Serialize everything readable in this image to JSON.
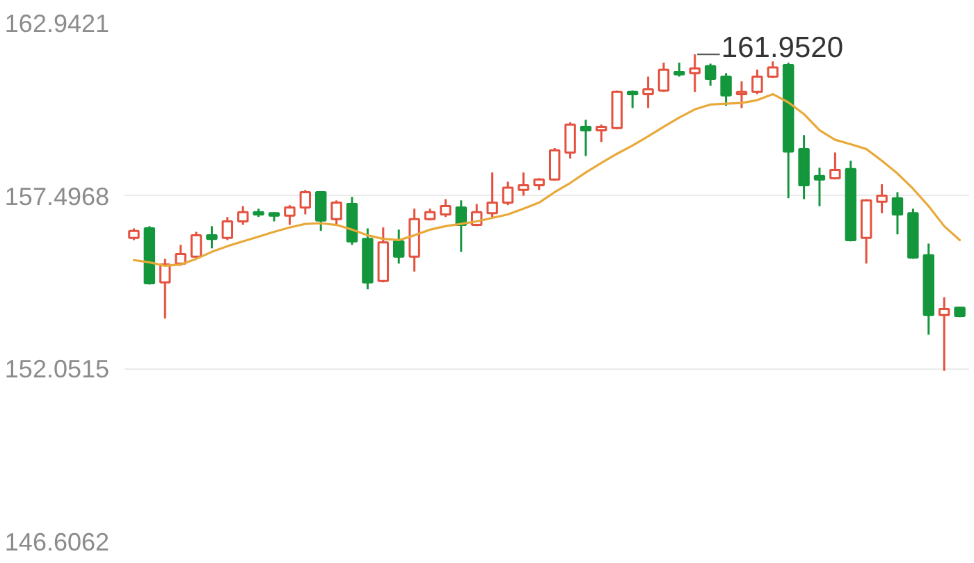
{
  "chart_data": {
    "type": "candlestick",
    "categories": [
      null,
      null,
      null,
      null,
      null,
      null,
      null,
      null,
      null,
      null,
      null,
      null,
      null,
      null,
      null,
      null,
      null,
      null,
      null,
      null,
      null,
      null,
      null,
      null,
      null,
      null,
      null,
      null,
      null,
      null,
      null,
      null,
      null,
      null,
      null,
      null,
      null,
      null,
      null,
      null,
      null,
      null,
      null,
      null,
      null,
      null,
      null,
      null,
      null,
      null,
      null,
      null,
      null,
      null
    ],
    "ohlc": [
      [
        156.17,
        156.47,
        156.1,
        156.39
      ],
      [
        156.47,
        156.54,
        154.7,
        154.74
      ],
      [
        154.77,
        155.51,
        153.63,
        155.33
      ],
      [
        155.36,
        155.95,
        155.29,
        155.66
      ],
      [
        155.58,
        156.36,
        155.51,
        156.25
      ],
      [
        156.25,
        156.54,
        155.84,
        156.14
      ],
      [
        156.17,
        156.83,
        156.1,
        156.69
      ],
      [
        156.69,
        157.17,
        156.58,
        156.98
      ],
      [
        156.98,
        157.09,
        156.83,
        156.91
      ],
      [
        156.95,
        156.98,
        156.69,
        156.87
      ],
      [
        156.87,
        157.2,
        156.58,
        157.13
      ],
      [
        157.13,
        157.68,
        156.91,
        157.61
      ],
      [
        157.61,
        157.64,
        156.39,
        156.72
      ],
      [
        156.76,
        157.35,
        156.58,
        157.28
      ],
      [
        157.24,
        157.46,
        155.95,
        156.06
      ],
      [
        156.14,
        156.47,
        154.55,
        154.77
      ],
      [
        154.81,
        156.5,
        154.77,
        156.03
      ],
      [
        156.06,
        156.43,
        155.36,
        155.58
      ],
      [
        155.58,
        157.09,
        155.11,
        156.76
      ],
      [
        156.76,
        157.09,
        156.72,
        156.98
      ],
      [
        156.91,
        157.39,
        156.83,
        157.17
      ],
      [
        157.13,
        157.35,
        155.73,
        156.58
      ],
      [
        156.58,
        157.24,
        156.54,
        156.98
      ],
      [
        156.95,
        158.23,
        156.83,
        157.28
      ],
      [
        157.28,
        157.94,
        157.2,
        157.75
      ],
      [
        157.68,
        158.23,
        157.5,
        157.83
      ],
      [
        157.83,
        158.05,
        157.68,
        158.01
      ],
      [
        158.01,
        159.0,
        157.97,
        158.93
      ],
      [
        158.86,
        159.81,
        158.67,
        159.74
      ],
      [
        159.67,
        159.89,
        158.75,
        159.56
      ],
      [
        159.56,
        159.74,
        159.19,
        159.67
      ],
      [
        159.63,
        160.81,
        159.59,
        160.77
      ],
      [
        160.77,
        160.81,
        160.26,
        160.7
      ],
      [
        160.7,
        161.25,
        160.26,
        160.85
      ],
      [
        160.81,
        161.69,
        160.77,
        161.47
      ],
      [
        161.4,
        161.69,
        161.25,
        161.32
      ],
      [
        161.36,
        161.952,
        160.77,
        161.51
      ],
      [
        161.58,
        161.66,
        160.96,
        161.18
      ],
      [
        161.25,
        161.36,
        160.33,
        160.66
      ],
      [
        160.7,
        161.1,
        160.26,
        160.77
      ],
      [
        160.77,
        161.47,
        160.7,
        161.25
      ],
      [
        161.25,
        161.73,
        161.21,
        161.54
      ],
      [
        161.62,
        161.69,
        157.42,
        158.89
      ],
      [
        158.97,
        159.41,
        157.39,
        157.83
      ],
      [
        158.12,
        158.38,
        157.17,
        158.01
      ],
      [
        158.05,
        158.86,
        158.01,
        158.31
      ],
      [
        158.34,
        158.6,
        156.06,
        156.1
      ],
      [
        156.17,
        157.39,
        155.36,
        157.35
      ],
      [
        157.31,
        157.86,
        156.95,
        157.5
      ],
      [
        157.42,
        157.61,
        156.28,
        156.91
      ],
      [
        156.95,
        157.09,
        155.51,
        155.55
      ],
      [
        155.62,
        155.99,
        153.12,
        153.74
      ],
      [
        153.74,
        154.3,
        151.98,
        153.93
      ],
      [
        153.97,
        154.0,
        153.67,
        153.71
      ]
    ],
    "colors": [
      "#e4513f",
      "#14963c",
      "#e4513f",
      "#e4513f",
      "#e4513f",
      "#14963c",
      "#e4513f",
      "#e4513f",
      "#14963c",
      "#14963c",
      "#e4513f",
      "#e4513f",
      "#14963c",
      "#e4513f",
      "#14963c",
      "#14963c",
      "#e4513f",
      "#14963c",
      "#e4513f",
      "#e4513f",
      "#e4513f",
      "#14963c",
      "#e4513f",
      "#e4513f",
      "#e4513f",
      "#e4513f",
      "#e4513f",
      "#e4513f",
      "#e4513f",
      "#14963c",
      "#e4513f",
      "#e4513f",
      "#14963c",
      "#e4513f",
      "#e4513f",
      "#14963c",
      "#e4513f",
      "#14963c",
      "#14963c",
      "#e4513f",
      "#e4513f",
      "#e4513f",
      "#14963c",
      "#14963c",
      "#14963c",
      "#e4513f",
      "#14963c",
      "#e4513f",
      "#e4513f",
      "#14963c",
      "#14963c",
      "#14963c",
      "#e4513f",
      "#14963c"
    ],
    "series": [
      {
        "type": "line",
        "color": "#e9a93a",
        "values": [
          155.47,
          155.4,
          155.29,
          155.33,
          155.51,
          155.73,
          155.91,
          156.06,
          156.21,
          156.36,
          156.5,
          156.61,
          156.63,
          156.58,
          156.43,
          156.25,
          156.14,
          156.1,
          156.25,
          156.43,
          156.54,
          156.61,
          156.69,
          156.8,
          156.91,
          157.09,
          157.28,
          157.61,
          157.9,
          158.23,
          158.53,
          158.82,
          159.08,
          159.37,
          159.67,
          159.96,
          160.22,
          160.37,
          160.4,
          160.42,
          160.51,
          160.7,
          160.44,
          160.07,
          159.56,
          159.26,
          159.12,
          158.97,
          158.6,
          158.2,
          157.72,
          157.17,
          156.54,
          156.1
        ]
      }
    ],
    "ylim": [
      146.6062,
      162.9421
    ],
    "yticks": [
      146.6062,
      152.0515,
      157.4968,
      162.9421
    ],
    "grid": "y",
    "tick_labels": "y",
    "annotations": [
      "161.9520"
    ]
  }
}
